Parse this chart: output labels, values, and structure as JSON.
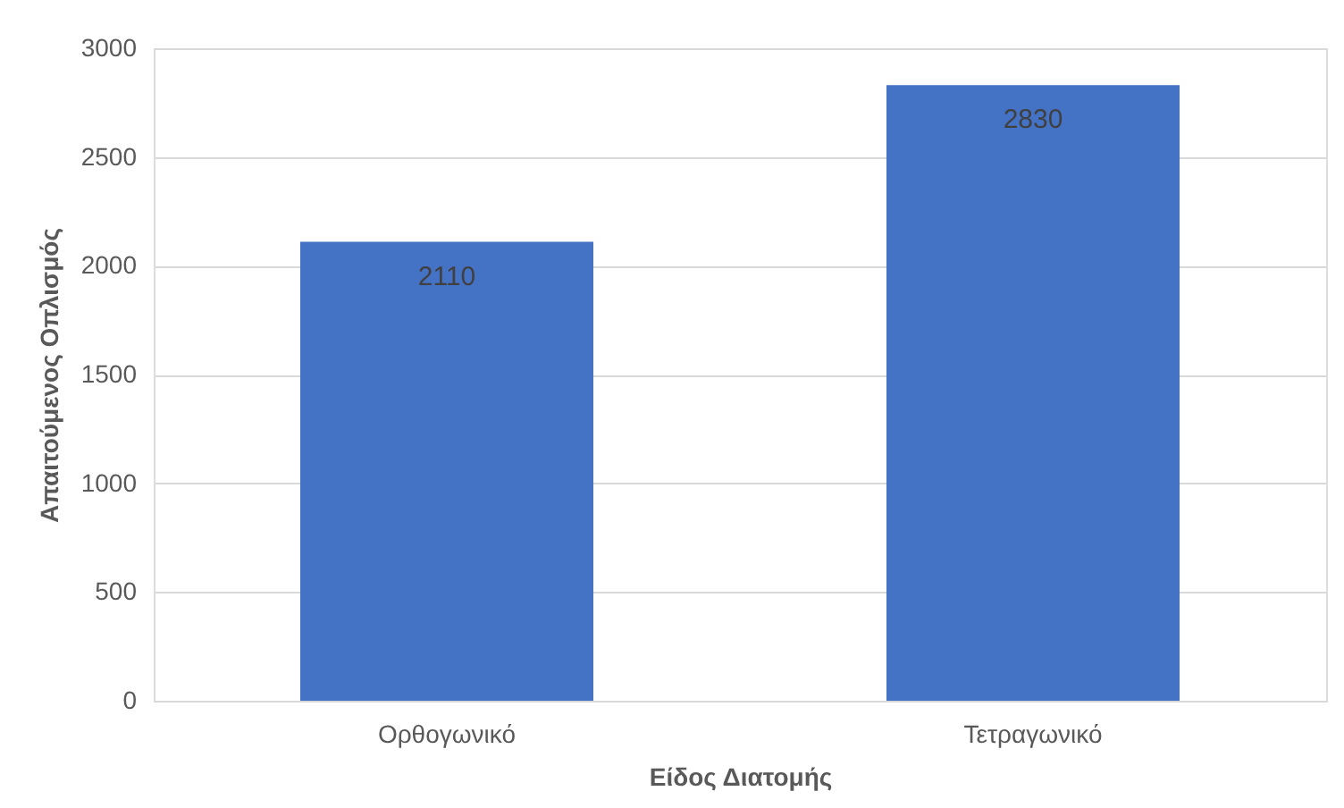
{
  "chart_data": {
    "type": "bar",
    "xlabel": "Είδος Διατομής",
    "ylabel": "Απαιτούμενος Οπλισμός",
    "categories": [
      "Ορθογωνικό",
      "Τετραγωνικό"
    ],
    "values": [
      2110,
      2830
    ],
    "color": "#4472c4",
    "ylim": [
      0,
      3000
    ],
    "yticks": [
      0,
      500,
      1000,
      1500,
      2000,
      2500,
      3000
    ],
    "grid": "y",
    "data_labels": true
  }
}
